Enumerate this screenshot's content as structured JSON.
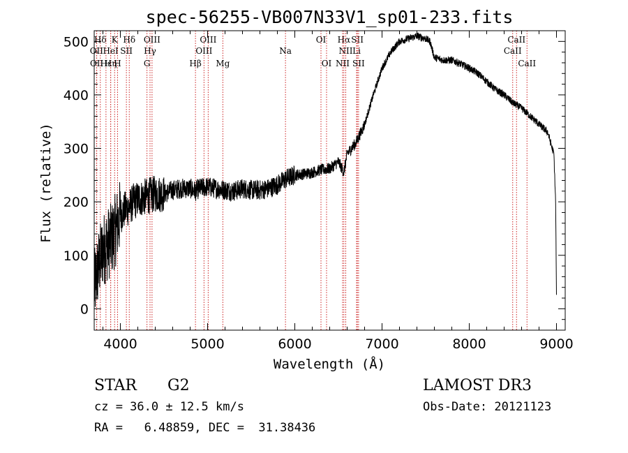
{
  "chart_data": {
    "type": "line",
    "title": "spec-56255-VB007N33V1_sp01-233.fits",
    "xlabel": "Wavelength (Å)",
    "ylabel": "Flux (relative)",
    "xlim": [
      3700,
      9100
    ],
    "ylim": [
      -40,
      520
    ],
    "x_ticks": [
      4000,
      5000,
      6000,
      7000,
      8000,
      9000
    ],
    "y_ticks": [
      0,
      100,
      200,
      300,
      400,
      500
    ],
    "series": [
      {
        "name": "spectrum",
        "x": [
          3700,
          3750,
          3800,
          3850,
          3900,
          3950,
          4000,
          4050,
          4100,
          4150,
          4200,
          4300,
          4400,
          4500,
          4600,
          4700,
          4800,
          4862,
          4900,
          5000,
          5100,
          5200,
          5300,
          5400,
          5500,
          5600,
          5700,
          5800,
          5900,
          6000,
          6100,
          6200,
          6300,
          6400,
          6500,
          6563,
          6600,
          6700,
          6800,
          6900,
          7000,
          7100,
          7200,
          7300,
          7400,
          7500,
          7550,
          7600,
          7700,
          7800,
          7900,
          8000,
          8100,
          8200,
          8300,
          8400,
          8500,
          8600,
          8700,
          8800,
          8900,
          8950,
          8970,
          8990,
          9000
        ],
        "y": [
          40,
          80,
          110,
          120,
          130,
          150,
          175,
          185,
          190,
          200,
          205,
          210,
          215,
          215,
          222,
          225,
          225,
          220,
          225,
          228,
          225,
          222,
          220,
          225,
          222,
          222,
          225,
          232,
          243,
          250,
          252,
          255,
          260,
          262,
          275,
          255,
          290,
          310,
          345,
          400,
          450,
          480,
          500,
          505,
          510,
          505,
          500,
          470,
          465,
          465,
          458,
          450,
          440,
          425,
          410,
          400,
          385,
          375,
          360,
          345,
          330,
          300,
          290,
          200,
          20
        ]
      }
    ],
    "spectral_lines": [
      {
        "label": "Hδ",
        "x": 3770,
        "row": 1
      },
      {
        "label": "K",
        "x": 3934,
        "row": 1
      },
      {
        "label": "Hδ",
        "x": 4102,
        "row": 1
      },
      {
        "label": "OIII",
        "x": 4363,
        "row": 1
      },
      {
        "label": "OIII",
        "x": 5007,
        "row": 1
      },
      {
        "label": "OI",
        "x": 6300,
        "row": 1
      },
      {
        "label": "Hα",
        "x": 6563,
        "row": 1
      },
      {
        "label": "SII",
        "x": 6717,
        "row": 1
      },
      {
        "label": "CaII",
        "x": 8542,
        "row": 1
      },
      {
        "label": "OII",
        "x": 3727,
        "row": 2
      },
      {
        "label": "HeI",
        "x": 3889,
        "row": 2
      },
      {
        "label": "SII",
        "x": 4069,
        "row": 2
      },
      {
        "label": "Hγ",
        "x": 4340,
        "row": 2
      },
      {
        "label": "OIII",
        "x": 4959,
        "row": 2
      },
      {
        "label": "Na",
        "x": 5893,
        "row": 2
      },
      {
        "label": "NII",
        "x": 6584,
        "row": 2
      },
      {
        "label": "Li",
        "x": 6708,
        "row": 2
      },
      {
        "label": "CaII",
        "x": 8498,
        "row": 2
      },
      {
        "label": "OII",
        "x": 3729,
        "row": 3
      },
      {
        "label": "Hε",
        "x": 3835,
        "row": 3
      },
      {
        "label": "Hη",
        "x": 3889,
        "row": 3
      },
      {
        "label": "H",
        "x": 3968,
        "row": 3
      },
      {
        "label": "G",
        "x": 4305,
        "row": 3
      },
      {
        "label": "Hβ",
        "x": 4861,
        "row": 3
      },
      {
        "label": "Mg",
        "x": 5175,
        "row": 3
      },
      {
        "label": "OI",
        "x": 6364,
        "row": 3
      },
      {
        "label": "NII",
        "x": 6548,
        "row": 3
      },
      {
        "label": "SII",
        "x": 6731,
        "row": 3
      },
      {
        "label": "CaII",
        "x": 8662,
        "row": 3
      }
    ]
  },
  "info": {
    "object_class": "STAR",
    "subclass": "G2",
    "survey": "LAMOST DR3",
    "cz": "cz = 36.0 ± 12.5 km/s",
    "obs_date": "Obs-Date: 20121123",
    "coords": "RA =   6.48859, DEC =  31.38436"
  },
  "colors": {
    "line_marker": "#cc2222",
    "spectrum": "#000000"
  }
}
